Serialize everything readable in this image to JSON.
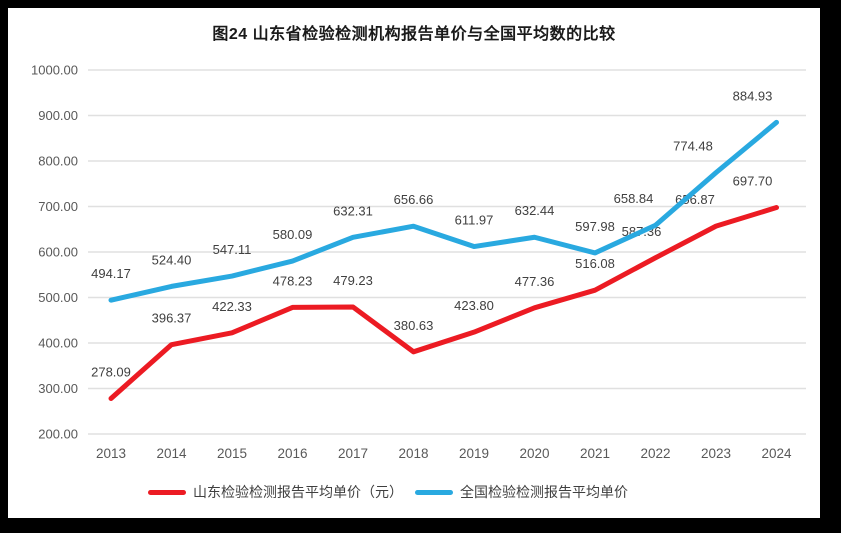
{
  "chart_data": {
    "type": "line",
    "title": "图24  山东省检验检测机构报告单价与全国平均数的比较",
    "categories": [
      "2013",
      "2014",
      "2015",
      "2016",
      "2017",
      "2018",
      "2019",
      "2020",
      "2021",
      "2022",
      "2023",
      "2024"
    ],
    "series": [
      {
        "name": "山东检验检测报告平均单价（元）",
        "color": "#ec1b23",
        "values": [
          278.09,
          396.37,
          422.33,
          478.23,
          479.23,
          380.63,
          423.8,
          477.36,
          516.08,
          587.36,
          656.87,
          697.7
        ]
      },
      {
        "name": "全国检验检测报告平均单价",
        "color": "#29a9e0",
        "values": [
          494.17,
          524.4,
          547.11,
          580.09,
          632.31,
          656.66,
          611.97,
          632.44,
          597.98,
          658.84,
          774.48,
          884.93
        ]
      }
    ],
    "ylim": [
      200,
      1000
    ],
    "ytick_step": 100,
    "yticks": [
      "1000.00",
      "900.00",
      "800.00",
      "700.00",
      "600.00",
      "500.00",
      "400.00",
      "300.00",
      "200.00"
    ],
    "xlabel": "",
    "ylabel": "",
    "grid": "horizontal",
    "legend_position": "bottom",
    "data_labels": "above each point, 2 decimal places"
  },
  "colors": {
    "page_frame": "#000000",
    "chart_background": "#ffffff",
    "gridline": "#e0e0e0",
    "axis_text": "#595959",
    "data_label_text": "#404040",
    "title_text": "#1a1a1a",
    "legend_text": "#3f3f3f"
  }
}
